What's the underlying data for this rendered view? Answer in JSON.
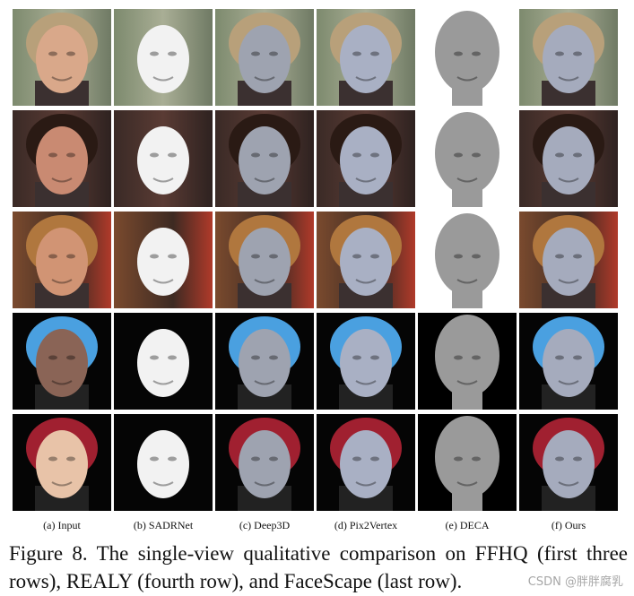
{
  "figure": {
    "column_labels": [
      "(a) Input",
      "(b) SADRNet",
      "(c) Deep3D",
      "(d) Pix2Vertex",
      "(e) DECA",
      "(f) Ours"
    ],
    "caption": "Figure 8. The single-view qualitative comparison on FFHQ (first three rows), REALY (fourth row), and FaceScape (last row).",
    "watermark": "CSDN @胖胖腐乳"
  }
}
